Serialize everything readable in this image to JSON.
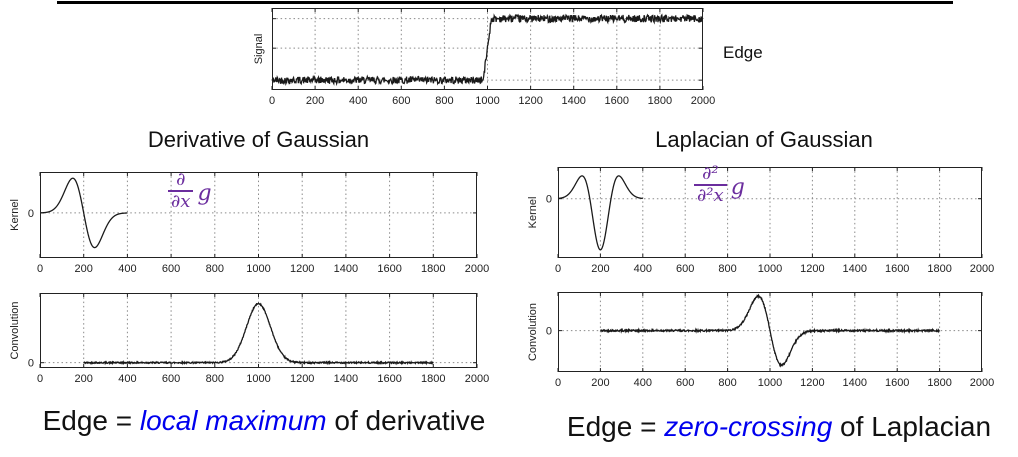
{
  "signal_section": {
    "ylabel": "Signal",
    "edge_label": "Edge"
  },
  "columns": {
    "left": {
      "title": "Derivative of Gaussian",
      "formula": {
        "numerator": "∂",
        "denominator": "∂x",
        "symbol": "g"
      },
      "caption": {
        "prefix": "Edge = ",
        "emphasis": "local maximum",
        "suffix": " of derivative"
      }
    },
    "right": {
      "title": "Laplacian of Gaussian",
      "formula": {
        "numerator": "∂²",
        "denominator": "∂²x",
        "symbol": "g"
      },
      "caption": {
        "prefix": "Edge = ",
        "emphasis": "zero-crossing",
        "suffix": " of Laplacian"
      }
    }
  },
  "colors": {
    "formula_purple": "#6b2d9e",
    "caption_blue": "#0000ee",
    "curve_black": "#1a1a1a",
    "grid_gray": "#8a8a8a",
    "axis_black": "#222222"
  },
  "chart_data": [
    {
      "id": "signal",
      "type": "line",
      "title": "",
      "xlabel": "",
      "ylabel": "Signal",
      "xlim": [
        0,
        2000
      ],
      "ylim": [
        0,
        1
      ],
      "grid": true,
      "legend": "none",
      "xticks": [
        0,
        200,
        400,
        600,
        800,
        1000,
        1200,
        1400,
        1600,
        1800,
        2000
      ],
      "xtick_labels": [
        "0",
        "200",
        "400",
        "600",
        "800",
        "1000",
        "1200",
        "1400",
        "1600",
        "1800",
        "2000"
      ],
      "hlines": [
        0.12,
        0.51,
        0.87
      ],
      "curve": {
        "kind": "noisy_step",
        "center": 1000,
        "ramp_start": 980,
        "ramp_end": 1018,
        "low": 0.12,
        "high": 0.87,
        "noise": 0.045,
        "x_start": 0,
        "x_end": 2000
      }
    },
    {
      "id": "kernel-dog",
      "type": "line",
      "title": "Derivative of Gaussian kernel",
      "xlabel": "",
      "ylabel": "Kernel",
      "xlim": [
        0,
        2000
      ],
      "ylim": [
        -1.3,
        1.18
      ],
      "grid": true,
      "legend": "none",
      "y_zero_label": "0",
      "xticks": [
        0,
        200,
        400,
        600,
        800,
        1000,
        1200,
        1400,
        1600,
        1800,
        2000
      ],
      "xtick_labels": [
        "0",
        "200",
        "400",
        "600",
        "800",
        "1000",
        "1200",
        "1400",
        "1600",
        "1800",
        "2000"
      ],
      "hlines": [
        0
      ],
      "curve": {
        "kind": "gauss_deriv",
        "center": 200,
        "sigma": 50,
        "amp": 1,
        "noise": 0,
        "x_start": 0,
        "x_end": 400
      }
    },
    {
      "id": "kernel-log",
      "type": "line",
      "title": "Laplacian of Gaussian kernel",
      "xlabel": "",
      "ylabel": "Kernel",
      "xlim": [
        0,
        2000
      ],
      "ylim": [
        -1.16,
        0.62
      ],
      "grid": true,
      "legend": "none",
      "y_zero_label": "0",
      "xticks": [
        0,
        200,
        400,
        600,
        800,
        1000,
        1200,
        1400,
        1600,
        1800,
        2000
      ],
      "xtick_labels": [
        "0",
        "200",
        "400",
        "600",
        "800",
        "1000",
        "1200",
        "1400",
        "1600",
        "1800",
        "2000"
      ],
      "hlines": [
        0
      ],
      "curve": {
        "kind": "gauss_second_deriv",
        "center": 200,
        "sigma": 50,
        "amp": 1,
        "noise": 0,
        "x_start": 0,
        "x_end": 400
      }
    },
    {
      "id": "conv-dog",
      "type": "line",
      "title": "Convolution with derivative of Gaussian",
      "xlabel": "",
      "ylabel": "Convolution",
      "xlim": [
        0,
        2000
      ],
      "ylim": [
        -0.09,
        1.18
      ],
      "grid": true,
      "legend": "none",
      "y_zero_label": "0",
      "xticks": [
        0,
        200,
        400,
        600,
        800,
        1000,
        1200,
        1400,
        1600,
        1800,
        2000
      ],
      "xtick_labels": [
        "0",
        "200",
        "400",
        "600",
        "800",
        "1000",
        "1200",
        "1400",
        "1600",
        "1800",
        "2000"
      ],
      "hlines": [
        0
      ],
      "curve": {
        "kind": "gauss_bump",
        "center": 1000,
        "sigma": 55,
        "amp": 1,
        "noise": 0.012,
        "x_start": 200,
        "x_end": 1800
      }
    },
    {
      "id": "conv-log",
      "type": "line",
      "title": "Convolution with Laplacian of Gaussian",
      "xlabel": "",
      "ylabel": "Convolution",
      "xlim": [
        0,
        2000
      ],
      "ylim": [
        -1.2,
        1.12
      ],
      "grid": true,
      "legend": "none",
      "y_zero_label": "0",
      "xticks": [
        0,
        200,
        400,
        600,
        800,
        1000,
        1200,
        1400,
        1600,
        1800,
        2000
      ],
      "xtick_labels": [
        "0",
        "200",
        "400",
        "600",
        "800",
        "1000",
        "1200",
        "1400",
        "1600",
        "1800",
        "2000"
      ],
      "hlines": [
        0
      ],
      "curve": {
        "kind": "gauss_deriv",
        "center": 1000,
        "sigma": 55,
        "amp": 1,
        "noise": 0.025,
        "x_start": 200,
        "x_end": 1800
      }
    }
  ]
}
